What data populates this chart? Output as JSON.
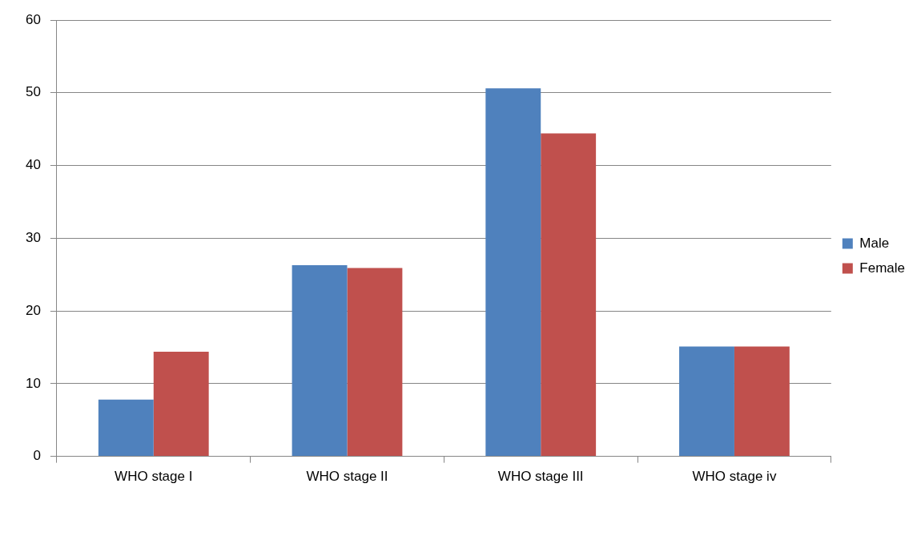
{
  "chart_data": {
    "type": "bar",
    "categories": [
      "WHO stage I",
      "WHO stage II",
      "WHO stage III",
      "WHO stage iv"
    ],
    "series": [
      {
        "name": "Male",
        "color": "#4f81bd",
        "values": [
          7.8,
          26.3,
          50.6,
          15.1
        ]
      },
      {
        "name": "Female",
        "color": "#c0504d",
        "values": [
          14.4,
          25.9,
          44.4,
          15.1
        ]
      }
    ],
    "ylim": [
      0,
      60
    ],
    "yticks": [
      0,
      10,
      20,
      30,
      40,
      50,
      60
    ],
    "grid": "y",
    "legend": "right"
  }
}
